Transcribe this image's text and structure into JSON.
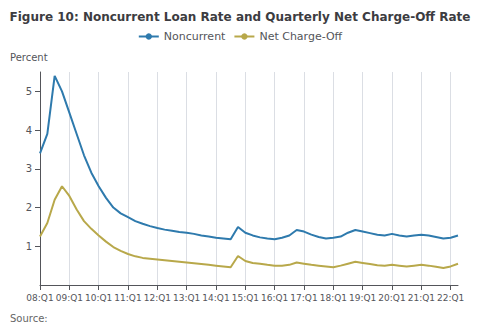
{
  "chart_data": {
    "type": "line",
    "title": "Figure 10: Noncurrent Loan Rate and Quarterly Net Charge-Off Rate",
    "ylabel": "Percent",
    "annotations": [
      "Source:"
    ],
    "categories": [
      "08:Q1",
      null,
      null,
      null,
      "09:Q1",
      null,
      null,
      null,
      "10:Q1",
      null,
      null,
      null,
      "11:Q1",
      null,
      null,
      null,
      "12:Q1",
      null,
      null,
      null,
      "13:Q1",
      null,
      null,
      null,
      "14:Q1",
      null,
      null,
      null,
      "15:Q1",
      null,
      null,
      null,
      "16:Q1",
      null,
      null,
      null,
      "17:Q1",
      null,
      null,
      null,
      "18:Q1",
      null,
      null,
      null,
      "19:Q1",
      null,
      null,
      null,
      "20:Q1",
      null,
      null,
      null,
      "21:Q1",
      null,
      null,
      null,
      "22:Q1",
      null
    ],
    "series": [
      {
        "name": "Noncurrent",
        "color": "#2e7aad",
        "values": [
          3.4,
          3.9,
          5.4,
          5.0,
          4.45,
          3.9,
          3.35,
          2.9,
          2.55,
          2.25,
          2.0,
          1.85,
          1.75,
          1.65,
          1.58,
          1.52,
          1.47,
          1.43,
          1.4,
          1.37,
          1.35,
          1.32,
          1.28,
          1.25,
          1.22,
          1.2,
          1.18,
          1.5,
          1.35,
          1.28,
          1.23,
          1.2,
          1.18,
          1.22,
          1.28,
          1.42,
          1.38,
          1.3,
          1.24,
          1.2,
          1.22,
          1.25,
          1.35,
          1.42,
          1.38,
          1.34,
          1.3,
          1.28,
          1.32,
          1.28,
          1.25,
          1.28,
          1.3,
          1.28,
          1.24,
          1.2,
          1.22,
          1.28
        ]
      },
      {
        "name": "Net Charge-Off",
        "color": "#b8a84a",
        "values": [
          1.25,
          1.6,
          2.2,
          2.55,
          2.3,
          1.95,
          1.65,
          1.45,
          1.28,
          1.12,
          0.98,
          0.88,
          0.8,
          0.74,
          0.7,
          0.68,
          0.66,
          0.64,
          0.62,
          0.6,
          0.58,
          0.56,
          0.54,
          0.52,
          0.5,
          0.48,
          0.46,
          0.75,
          0.62,
          0.57,
          0.55,
          0.52,
          0.5,
          0.5,
          0.52,
          0.58,
          0.55,
          0.52,
          0.5,
          0.48,
          0.46,
          0.5,
          0.55,
          0.6,
          0.57,
          0.54,
          0.51,
          0.5,
          0.52,
          0.5,
          0.48,
          0.5,
          0.52,
          0.5,
          0.47,
          0.44,
          0.48,
          0.55
        ]
      }
    ],
    "ylim": [
      0,
      5.5
    ],
    "yticks": [
      1,
      2,
      3,
      4,
      5
    ],
    "grid": true,
    "legend": "top"
  }
}
